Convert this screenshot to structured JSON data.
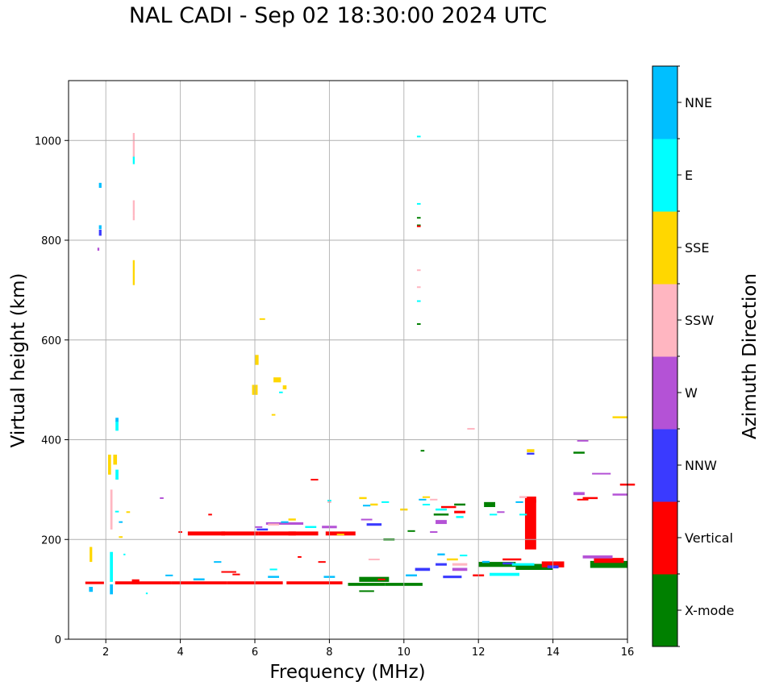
{
  "chart_data": {
    "type": "scatter",
    "title": "NAL CADI - Sep 02 18:30:00 2024 UTC",
    "xlabel": "Frequency (MHz)",
    "ylabel": "Virtual height (km)",
    "xlim": [
      1,
      16
    ],
    "ylim": [
      0,
      1120
    ],
    "xticks": [
      2,
      4,
      6,
      8,
      10,
      12,
      14,
      16
    ],
    "yticks": [
      0,
      200,
      400,
      600,
      800,
      1000
    ],
    "grid": true,
    "colorbar": {
      "label": "Azimuth Direction",
      "categories": [
        "X-mode",
        "Vertical",
        "NNW",
        "W",
        "SSW",
        "SSE",
        "E",
        "NNE"
      ],
      "colors": [
        "#008000",
        "#ff0000",
        "#3a3aff",
        "#b452d6",
        "#ffb6c1",
        "#ffd700",
        "#00ffff",
        "#00bfff"
      ]
    },
    "series": [
      {
        "name": "X-mode",
        "points": [
          [
            9.0,
            110,
            1.0,
            6
          ],
          [
            10.0,
            110,
            1.0,
            6
          ],
          [
            9.2,
            120,
            0.8,
            10
          ],
          [
            9.6,
            200,
            0.3,
            4
          ],
          [
            12.5,
            150,
            1.0,
            10
          ],
          [
            13.5,
            145,
            1.0,
            12
          ],
          [
            15.5,
            150,
            1.0,
            14
          ],
          [
            12.3,
            270,
            0.3,
            10
          ],
          [
            10.5,
            378,
            0.1,
            3
          ],
          [
            10.4,
            830,
            0.1,
            3
          ],
          [
            10.4,
            845,
            0.1,
            3
          ],
          [
            10.4,
            632,
            0.1,
            3
          ],
          [
            14.7,
            374,
            0.3,
            4
          ],
          [
            11.0,
            250,
            0.4,
            4
          ],
          [
            11.5,
            270,
            0.3,
            4
          ],
          [
            9.0,
            97,
            0.4,
            2
          ],
          [
            10.2,
            217,
            0.2,
            3
          ]
        ]
      },
      {
        "name": "Vertical",
        "points": [
          [
            3.0,
            113,
            1.5,
            6
          ],
          [
            4.5,
            113,
            1.5,
            6
          ],
          [
            6.0,
            113,
            1.5,
            6
          ],
          [
            7.6,
            113,
            1.5,
            6
          ],
          [
            4.7,
            212,
            1.0,
            8
          ],
          [
            5.6,
            212,
            1.0,
            8
          ],
          [
            6.6,
            212,
            1.0,
            8
          ],
          [
            7.3,
            212,
            0.8,
            8
          ],
          [
            8.3,
            212,
            0.8,
            8
          ],
          [
            1.7,
            113,
            0.5,
            5
          ],
          [
            13.4,
            230,
            0.3,
            100
          ],
          [
            13.4,
            280,
            0.3,
            12
          ],
          [
            14.0,
            150,
            0.6,
            12
          ],
          [
            15.5,
            158,
            0.8,
            10
          ],
          [
            16.0,
            310,
            0.4,
            4
          ],
          [
            15.0,
            283,
            0.4,
            4
          ],
          [
            11.2,
            265,
            0.4,
            4
          ],
          [
            11.5,
            255,
            0.3,
            5
          ],
          [
            7.6,
            320,
            0.2,
            3
          ],
          [
            2.8,
            115,
            0.2,
            10
          ],
          [
            4.0,
            215,
            0.1,
            3
          ],
          [
            5.3,
            135,
            0.4,
            3
          ],
          [
            5.5,
            130,
            0.2,
            3
          ],
          [
            7.8,
            155,
            0.2,
            3
          ],
          [
            4.8,
            250,
            0.1,
            3
          ],
          [
            7.2,
            165,
            0.1,
            3
          ],
          [
            10.4,
            828,
            0.1,
            3
          ],
          [
            12.0,
            128,
            0.3,
            4
          ],
          [
            14.8,
            280,
            0.3,
            3
          ],
          [
            9.4,
            120,
            0.2,
            3
          ],
          [
            12.9,
            160,
            0.5,
            4
          ]
        ]
      },
      {
        "name": "NNW",
        "points": [
          [
            1.85,
            815,
            0.07,
            12
          ],
          [
            13.4,
            372,
            0.2,
            4
          ],
          [
            10.5,
            140,
            0.4,
            6
          ],
          [
            11.3,
            125,
            0.5,
            5
          ],
          [
            6.2,
            220,
            0.3,
            4
          ],
          [
            9.2,
            230,
            0.4,
            5
          ],
          [
            11.0,
            150,
            0.3,
            5
          ],
          [
            14.0,
            145,
            0.3,
            6
          ],
          [
            12.8,
            152,
            0.3,
            4
          ]
        ]
      },
      {
        "name": "W",
        "points": [
          [
            1.8,
            782,
            0.05,
            6
          ],
          [
            6.8,
            232,
            1.0,
            5
          ],
          [
            8.0,
            225,
            0.4,
            5
          ],
          [
            11.0,
            235,
            0.3,
            8
          ],
          [
            14.7,
            292,
            0.3,
            6
          ],
          [
            15.3,
            332,
            0.5,
            3
          ],
          [
            15.8,
            290,
            0.4,
            4
          ],
          [
            14.8,
            398,
            0.3,
            3
          ],
          [
            15.2,
            165,
            0.8,
            6
          ],
          [
            11.5,
            140,
            0.4,
            6
          ],
          [
            10.8,
            215,
            0.2,
            3
          ],
          [
            6.1,
            225,
            0.2,
            3
          ],
          [
            9.0,
            240,
            0.3,
            3
          ],
          [
            12.6,
            255,
            0.2,
            3
          ],
          [
            3.5,
            283,
            0.1,
            3
          ]
        ]
      },
      {
        "name": "SSW",
        "points": [
          [
            2.75,
            990,
            0.05,
            50
          ],
          [
            2.75,
            865,
            0.05,
            30
          ],
          [
            2.75,
            845,
            0.05,
            10
          ],
          [
            2.15,
            260,
            0.06,
            80
          ],
          [
            10.4,
            740,
            0.1,
            3
          ],
          [
            10.4,
            706,
            0.1,
            3
          ],
          [
            11.8,
            422,
            0.2,
            3
          ],
          [
            13.2,
            285,
            0.2,
            4
          ],
          [
            11.5,
            150,
            0.4,
            5
          ],
          [
            6.5,
            230,
            0.3,
            4
          ],
          [
            8.0,
            275,
            0.1,
            3
          ],
          [
            10.8,
            280,
            0.2,
            3
          ],
          [
            9.2,
            160,
            0.3,
            3
          ],
          [
            12.8,
            130,
            0.3,
            3
          ]
        ]
      },
      {
        "name": "SSE",
        "points": [
          [
            2.75,
            735,
            0.05,
            50
          ],
          [
            6.0,
            500,
            0.15,
            20
          ],
          [
            6.05,
            560,
            0.1,
            20
          ],
          [
            6.6,
            520,
            0.2,
            10
          ],
          [
            6.8,
            505,
            0.1,
            8
          ],
          [
            6.2,
            642,
            0.15,
            3
          ],
          [
            6.5,
            450,
            0.1,
            3
          ],
          [
            2.1,
            350,
            0.08,
            40
          ],
          [
            2.25,
            360,
            0.1,
            20
          ],
          [
            1.6,
            170,
            0.07,
            30
          ],
          [
            2.6,
            255,
            0.1,
            3
          ],
          [
            13.4,
            378,
            0.2,
            6
          ],
          [
            15.8,
            445,
            0.4,
            4
          ],
          [
            8.9,
            283,
            0.2,
            4
          ],
          [
            9.2,
            270,
            0.2,
            4
          ],
          [
            10.0,
            260,
            0.2,
            4
          ],
          [
            7.0,
            240,
            0.2,
            4
          ],
          [
            10.6,
            285,
            0.2,
            3
          ],
          [
            8.3,
            210,
            0.2,
            3
          ],
          [
            2.4,
            205,
            0.1,
            3
          ],
          [
            11.3,
            160,
            0.3,
            4
          ]
        ]
      },
      {
        "name": "E",
        "points": [
          [
            2.75,
            960,
            0.05,
            15
          ],
          [
            2.3,
            330,
            0.08,
            20
          ],
          [
            2.3,
            428,
            0.08,
            20
          ],
          [
            2.15,
            145,
            0.08,
            60
          ],
          [
            10.4,
            1008,
            0.1,
            3
          ],
          [
            10.4,
            873,
            0.1,
            3
          ],
          [
            10.4,
            678,
            0.1,
            3
          ],
          [
            12.7,
            130,
            0.8,
            6
          ],
          [
            13.2,
            150,
            0.6,
            5
          ],
          [
            11.0,
            260,
            0.3,
            4
          ],
          [
            11.5,
            245,
            0.2,
            4
          ],
          [
            9.5,
            275,
            0.2,
            3
          ],
          [
            7.5,
            225,
            0.3,
            4
          ],
          [
            6.7,
            495,
            0.1,
            3
          ],
          [
            13.2,
            250,
            0.2,
            3
          ],
          [
            12.4,
            250,
            0.2,
            3
          ],
          [
            2.3,
            256,
            0.1,
            3
          ],
          [
            2.5,
            170,
            0.05,
            3
          ],
          [
            3.1,
            92,
            0.05,
            3
          ],
          [
            8.0,
            278,
            0.1,
            3
          ],
          [
            10.6,
            270,
            0.2,
            3
          ],
          [
            11.6,
            168,
            0.2,
            3
          ],
          [
            6.5,
            140,
            0.2,
            3
          ]
        ]
      },
      {
        "name": "NNE",
        "points": [
          [
            1.85,
            910,
            0.07,
            10
          ],
          [
            1.85,
            826,
            0.07,
            8
          ],
          [
            2.15,
            100,
            0.08,
            20
          ],
          [
            2.3,
            440,
            0.08,
            8
          ],
          [
            1.6,
            100,
            0.1,
            10
          ],
          [
            4.5,
            120,
            0.3,
            4
          ],
          [
            6.5,
            125,
            0.3,
            4
          ],
          [
            8.0,
            125,
            0.3,
            4
          ],
          [
            10.2,
            128,
            0.3,
            4
          ],
          [
            11.0,
            170,
            0.2,
            4
          ],
          [
            12.2,
            155,
            0.2,
            4
          ],
          [
            2.4,
            235,
            0.1,
            3
          ],
          [
            3.7,
            128,
            0.2,
            3
          ],
          [
            5.0,
            155,
            0.2,
            3
          ],
          [
            6.8,
            235,
            0.2,
            3
          ],
          [
            9.0,
            268,
            0.2,
            3
          ],
          [
            10.5,
            280,
            0.2,
            3
          ],
          [
            13.1,
            275,
            0.2,
            3
          ]
        ]
      }
    ]
  }
}
